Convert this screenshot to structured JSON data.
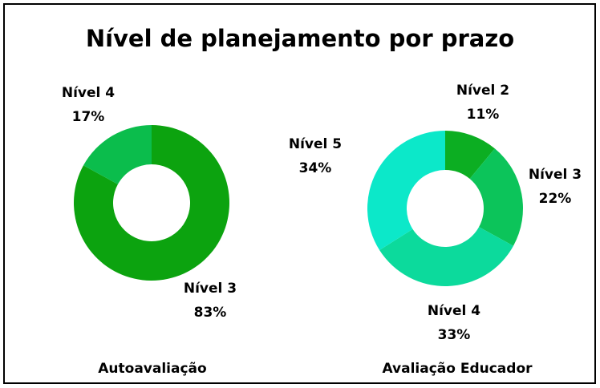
{
  "title": "Nível de planejamento por prazo",
  "chart_data": [
    {
      "type": "donut",
      "title": "Autoavaliação",
      "categories": [
        "Nível 3",
        "Nível 4"
      ],
      "values": [
        83,
        17
      ],
      "value_labels": [
        "83%",
        "17%"
      ],
      "colors": [
        "#0ca30f",
        "#0bbd4c"
      ]
    },
    {
      "type": "donut",
      "title": "Avaliação Educador",
      "categories": [
        "Nível 2",
        "Nível 3",
        "Nível 4",
        "Nível 5"
      ],
      "values": [
        11,
        22,
        33,
        34
      ],
      "value_labels": [
        "11%",
        "22%",
        "33%",
        "34%"
      ],
      "colors": [
        "#0cae22",
        "#0cc45a",
        "#0cda9c",
        "#0ce8c9"
      ]
    }
  ]
}
